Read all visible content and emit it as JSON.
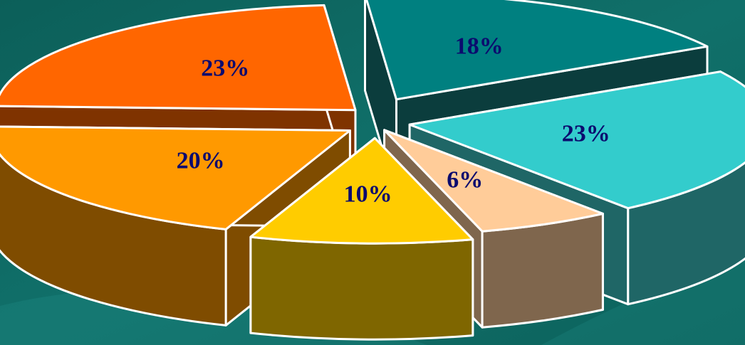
{
  "chart_data": {
    "type": "pie",
    "variant": "3d-exploded",
    "title": "",
    "categories": [
      "",
      "",
      "",
      "",
      "",
      ""
    ],
    "values": [
      18,
      23,
      6,
      10,
      20,
      23
    ],
    "labels": [
      "18%",
      "23%",
      "6%",
      "10%",
      "20%",
      "23%"
    ],
    "colors": {
      "top": [
        "#008080",
        "#33cccc",
        "#ffcc99",
        "#ffcc00",
        "#ff9900",
        "#ff6600"
      ],
      "side": [
        "#0b3d3d",
        "#1f6666",
        "#7f664d",
        "#7f6600",
        "#7f4c00",
        "#7f3300"
      ]
    },
    "legend": "none",
    "grid": false
  },
  "background": "#0f6a63"
}
